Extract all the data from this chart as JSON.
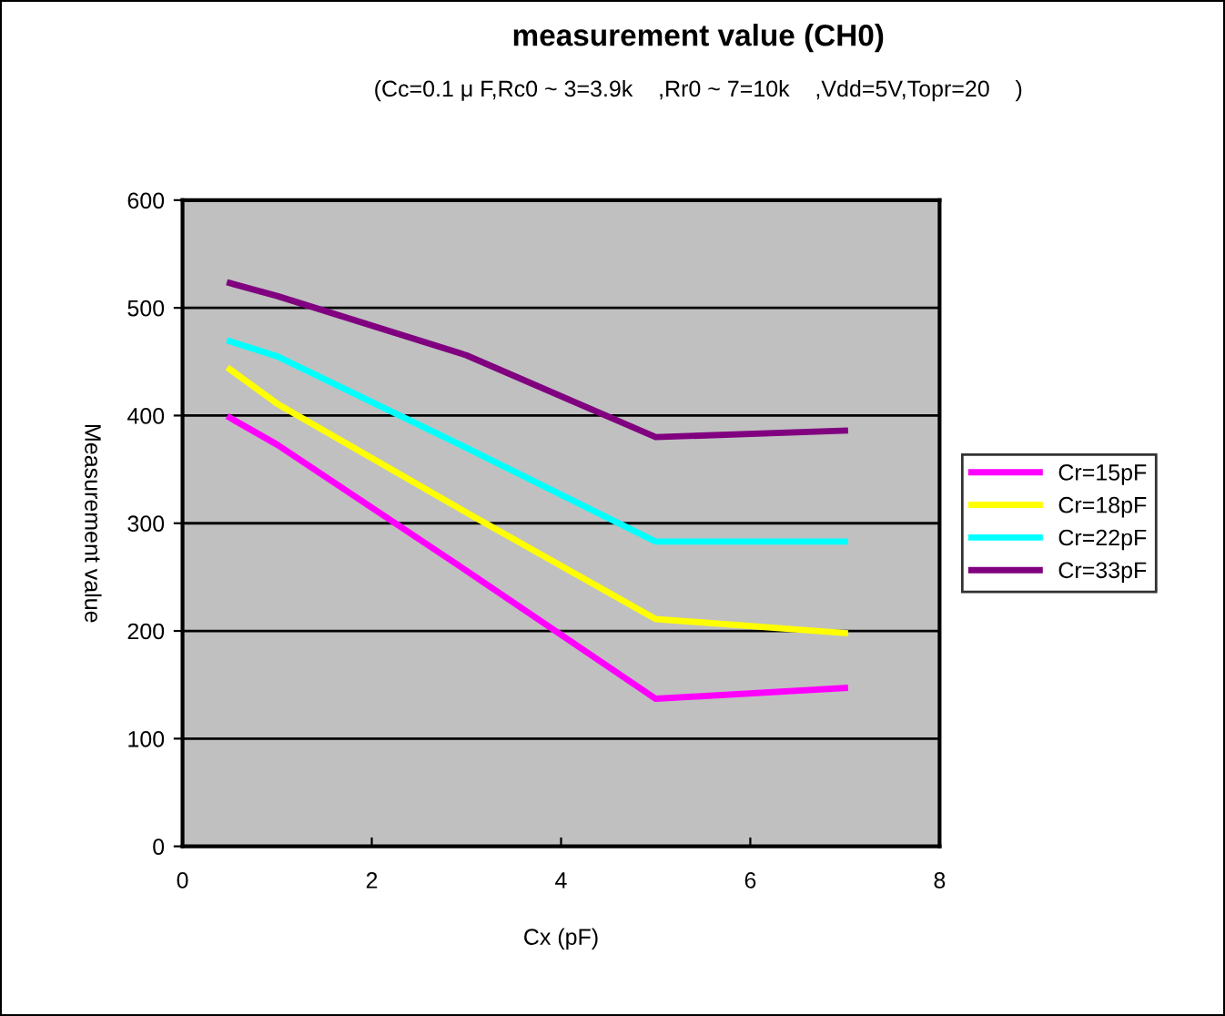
{
  "chart_data": {
    "type": "line",
    "title": "measurement value (CH0)",
    "subtitle": "(Cc=0.1 μ F,Rc0 ~ 3=3.9k    ,Rr0 ~ 7=10k    ,Vdd=5V,Topr=20    )",
    "xlabel": "Cx (pF)",
    "ylabel": "Measurement value",
    "x": [
      0.5,
      1,
      3,
      5,
      7
    ],
    "series": [
      {
        "name": "Cr=15pF",
        "color": "#ff00ff",
        "values": [
          398,
          373,
          256,
          137,
          147
        ]
      },
      {
        "name": "Cr=18pF",
        "color": "#ffff00",
        "values": [
          443,
          411,
          310,
          211,
          198
        ]
      },
      {
        "name": "Cr=22pF",
        "color": "#00ffff",
        "values": [
          469,
          455,
          370,
          283,
          283
        ]
      },
      {
        "name": "Cr=33pF",
        "color": "#800080",
        "values": [
          523,
          511,
          456,
          380,
          386
        ]
      }
    ],
    "xlim": [
      0,
      8
    ],
    "xticks": [
      0,
      2,
      4,
      6,
      8
    ],
    "ylim": [
      0,
      600
    ],
    "yticks": [
      0,
      100,
      200,
      300,
      400,
      500,
      600
    ],
    "grid": "y",
    "legend": "right",
    "marker": "none",
    "line_style": "solid"
  }
}
